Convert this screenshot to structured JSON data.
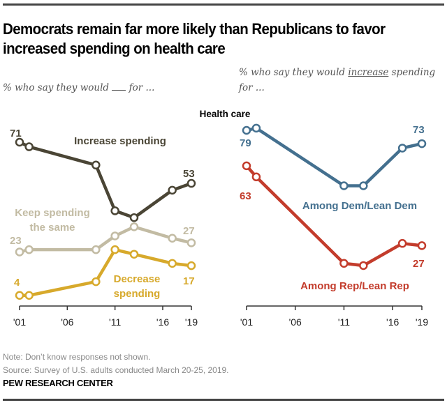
{
  "title": "Democrats remain far more likely than Republicans to favor increased spending on health care",
  "subtitle_left": {
    "before": "% who say they would ",
    "after": " for ..."
  },
  "subtitle_right": {
    "before": "% who say they would ",
    "underlined": "increase",
    "after": " spending for ..."
  },
  "note": "Note: Don’t know responses not shown.",
  "source": "Source: Survey of U.S. adults conducted March 20-25, 2019.",
  "brand": "PEW RESEARCH CENTER",
  "colors": {
    "increase": "#4a4535",
    "keep": "#c2bba3",
    "decrease": "#d7a92b",
    "dem": "#44708f",
    "rep": "#c33c2c",
    "axis": "#333333"
  },
  "chart_data": [
    {
      "type": "line",
      "title": "Health care",
      "subtitle": "% who say they would __ for ...",
      "x": [
        2001,
        2002,
        2009,
        2011,
        2013,
        2017,
        2019
      ],
      "xticks": [
        2001,
        2006,
        2011,
        2016,
        2019
      ],
      "xtick_labels": [
        "'01",
        "'06",
        "'11",
        "'16",
        "'19"
      ],
      "xlim": [
        2001,
        2019
      ],
      "ylim": [
        0,
        80
      ],
      "grid": false,
      "series": [
        {
          "name": "Increase spending",
          "values": [
            71,
            69,
            61,
            41,
            38,
            50,
            53
          ],
          "start_label": "71",
          "end_label": "53"
        },
        {
          "name": "Keep spending the same",
          "values": [
            23,
            24,
            24,
            30,
            34,
            29,
            27
          ],
          "start_label": "23",
          "end_label": "27"
        },
        {
          "name": "Decrease spending",
          "values": [
            4,
            4,
            10,
            24,
            22,
            18,
            17
          ],
          "start_label": "4",
          "end_label": "17"
        }
      ]
    },
    {
      "type": "line",
      "title": "Health care",
      "subtitle": "% who say they would increase spending for ...",
      "x": [
        2001,
        2002,
        2011,
        2013,
        2017,
        2019
      ],
      "xticks": [
        2001,
        2006,
        2011,
        2016,
        2019
      ],
      "xtick_labels": [
        "'01",
        "'06",
        "'11",
        "'16",
        "'19"
      ],
      "xlim": [
        2001,
        2019
      ],
      "ylim": [
        0,
        80
      ],
      "grid": false,
      "series": [
        {
          "name": "Among Dem/Lean Dem",
          "values": [
            79,
            80,
            54,
            54,
            71,
            73
          ],
          "start_label": "79",
          "end_label": "73"
        },
        {
          "name": "Among Rep/Lean Rep",
          "values": [
            63,
            58,
            19,
            18,
            28,
            27
          ],
          "start_label": "63",
          "end_label": "27"
        }
      ]
    }
  ]
}
